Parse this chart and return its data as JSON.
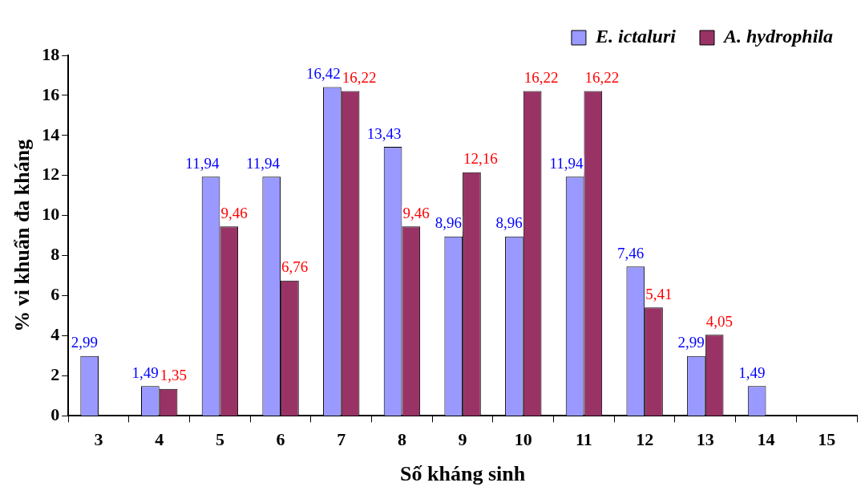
{
  "chart_data": {
    "type": "bar",
    "xlabel": "Số kháng sinh",
    "ylabel": "% vi khuẩn đa kháng",
    "categories": [
      "3",
      "4",
      "5",
      "6",
      "7",
      "8",
      "9",
      "10",
      "11",
      "12",
      "13",
      "14",
      "15"
    ],
    "series": [
      {
        "name": "E. ictaluri",
        "color": "#9999ff",
        "values": [
          2.99,
          1.49,
          11.94,
          11.94,
          16.42,
          13.43,
          8.96,
          8.96,
          11.94,
          7.46,
          2.99,
          1.49,
          null
        ],
        "value_labels": [
          "2,99",
          "1,49",
          "11,94",
          "11,94",
          "16,42",
          "13,43",
          "8,96",
          "8,96",
          "11,94",
          "7,46",
          "2,99",
          "1,49",
          null
        ]
      },
      {
        "name": "A. hydrophila",
        "color": "#993366",
        "values": [
          null,
          1.35,
          9.46,
          6.76,
          16.22,
          9.46,
          12.16,
          16.22,
          16.22,
          5.41,
          4.05,
          null,
          null
        ],
        "value_labels": [
          null,
          "1,35",
          "9,46",
          "6,76",
          "16,22",
          "9,46",
          "12,16",
          "16,22",
          "16,22",
          "5,41",
          "4,05",
          null,
          null
        ]
      }
    ],
    "ylim": [
      0,
      18
    ],
    "yticks": [
      0,
      2,
      4,
      6,
      8,
      10,
      12,
      14,
      16,
      18
    ],
    "grid": false,
    "legend": "top right"
  }
}
